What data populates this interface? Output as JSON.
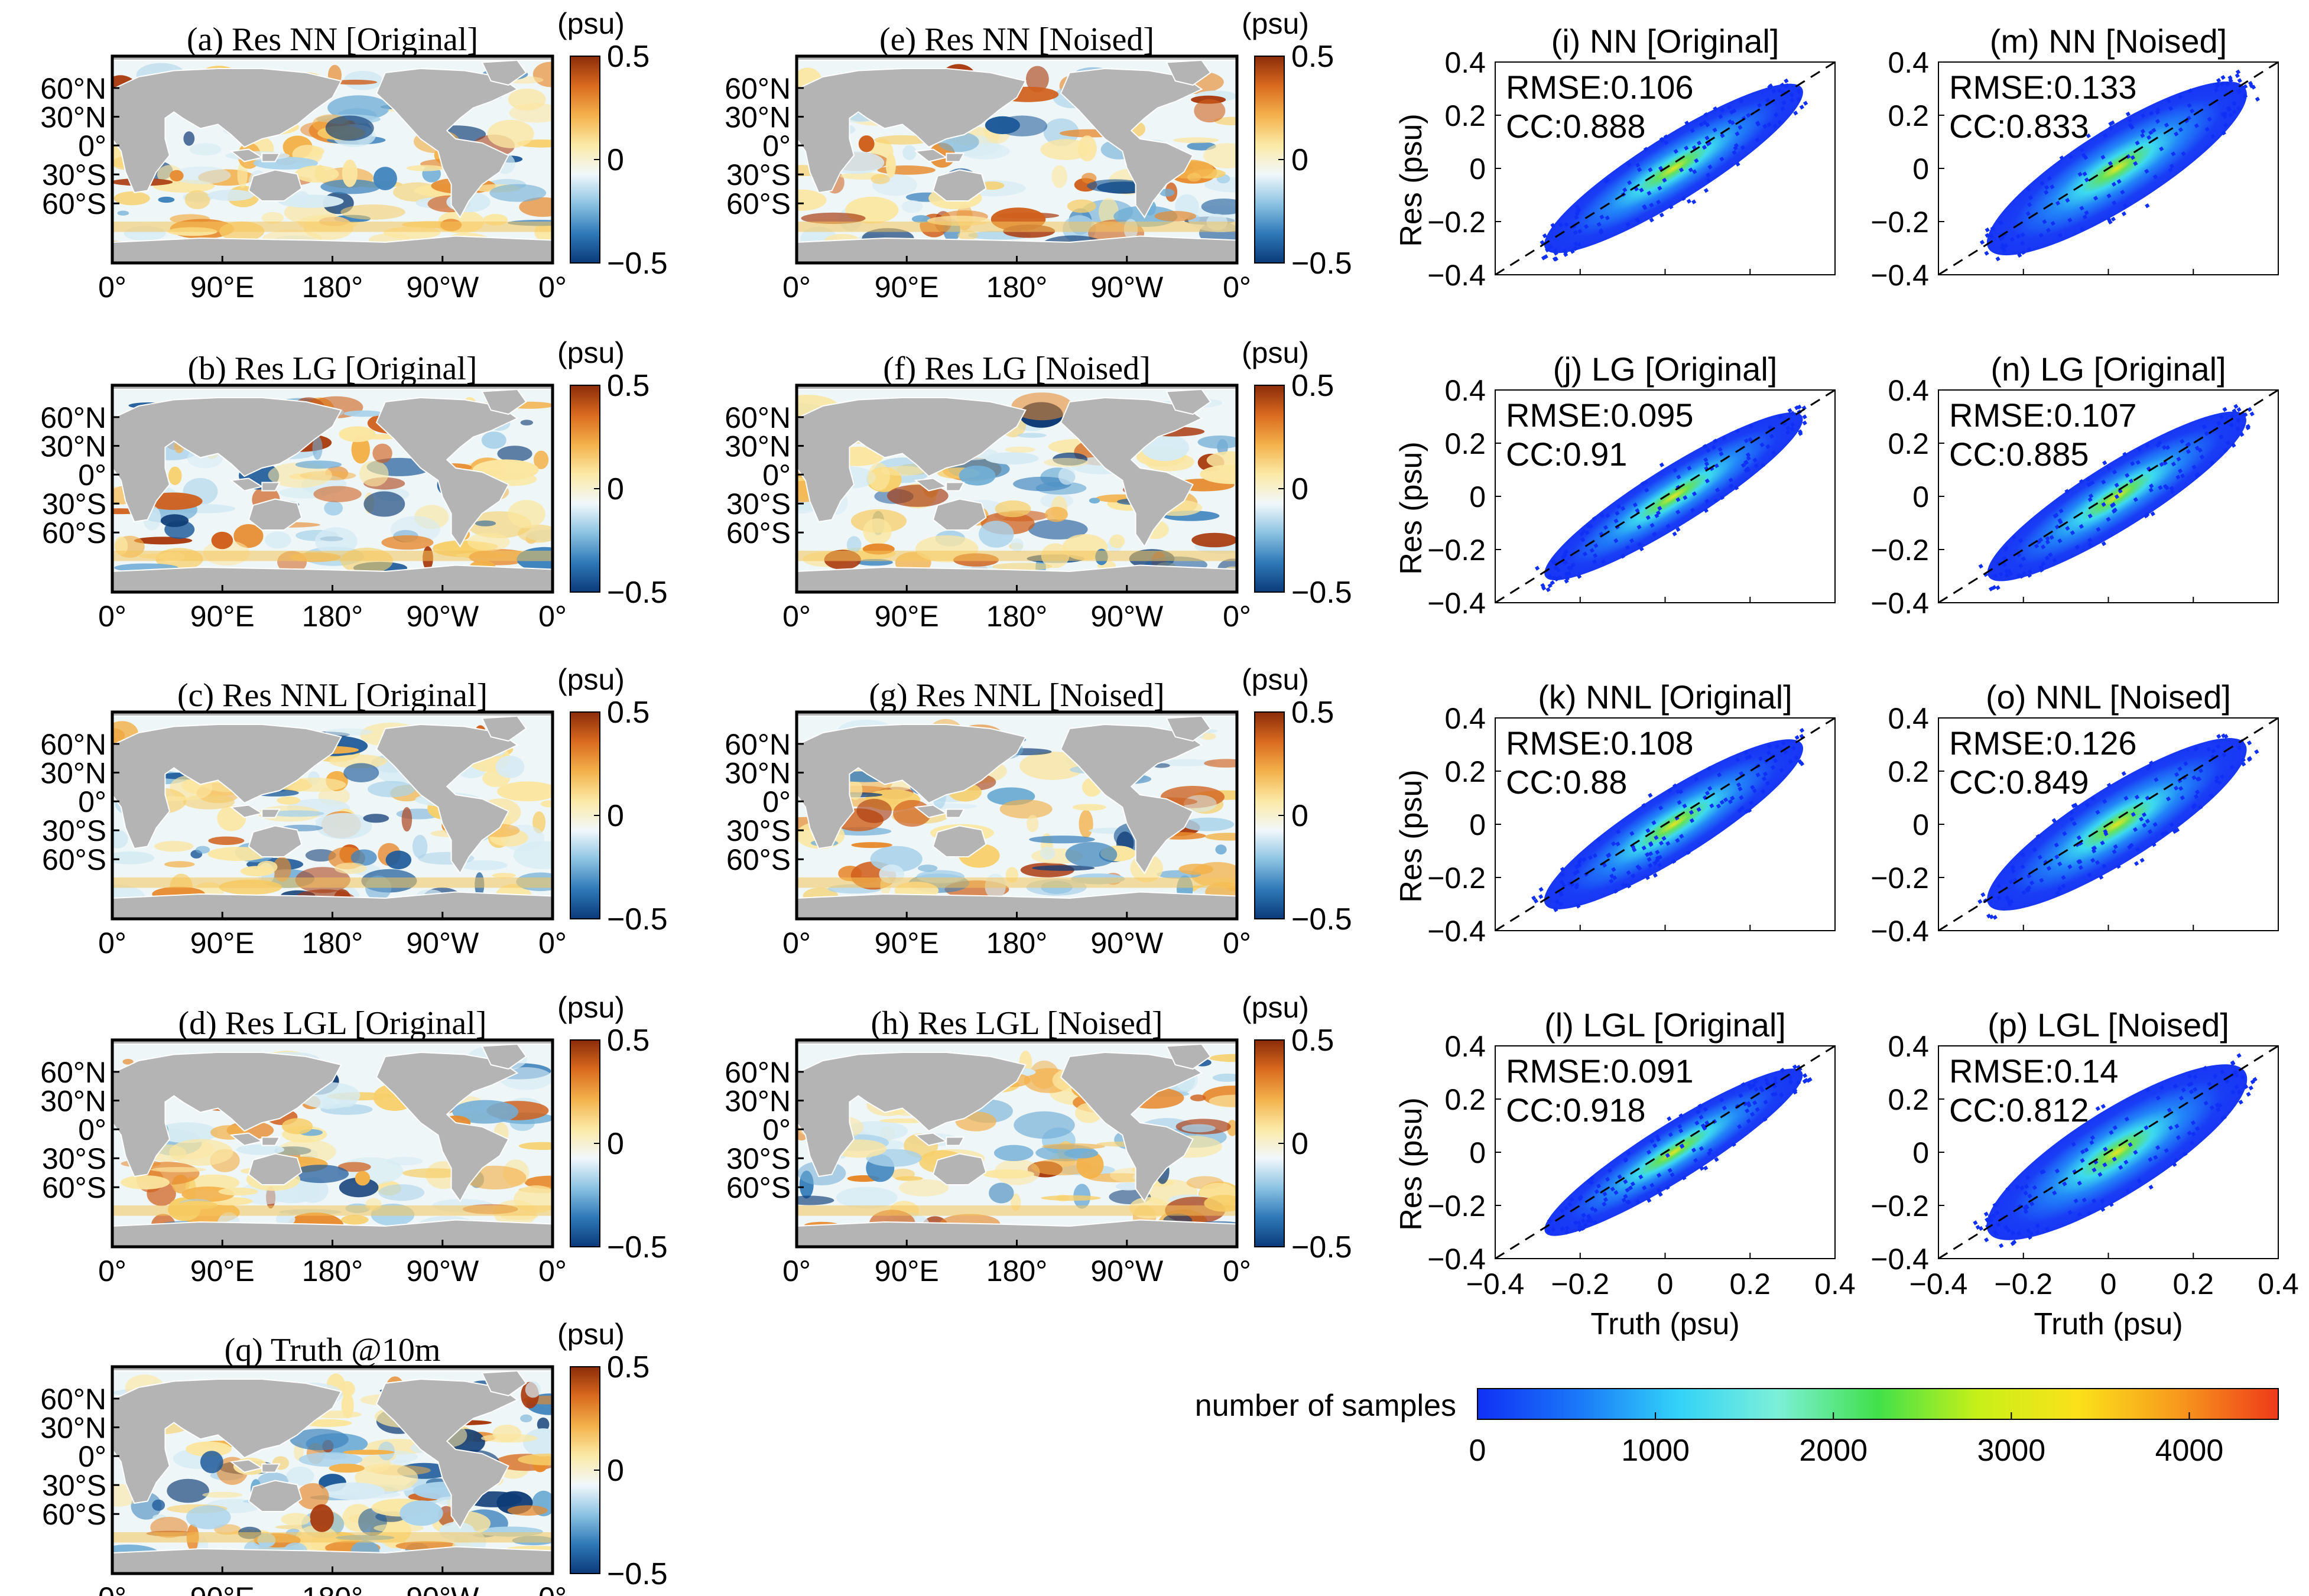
{
  "colors": {
    "land": "#b4b4b4",
    "diverging": [
      "#0b3a7a",
      "#2f79b8",
      "#8cc3e2",
      "#f2f8fb",
      "#fbe9a6",
      "#f3b14a",
      "#d96a1f",
      "#8a2c0a"
    ],
    "density": [
      "#1030f5",
      "#1a78f8",
      "#32d2f8",
      "#7cf0d8",
      "#41e04a",
      "#c8f018",
      "#fbe11a",
      "#f79a1c",
      "#ee3a1a"
    ],
    "identity_line": "#000000"
  },
  "map_axes": {
    "lat_ticks": [
      "60°N",
      "30°N",
      "0°",
      "30°S",
      "60°S"
    ],
    "lon_ticks": [
      "0°",
      "90°E",
      "180°",
      "90°W",
      "0°"
    ],
    "colorbar_unit": "(psu)",
    "colorbar_ticks": [
      "0.5",
      "0",
      "−0.5"
    ]
  },
  "maps": [
    {
      "id": "a",
      "title": "(a) Res NN [Original]"
    },
    {
      "id": "b",
      "title": "(b) Res LG [Original]"
    },
    {
      "id": "c",
      "title": "(c) Res NNL [Original]"
    },
    {
      "id": "d",
      "title": "(d) Res LGL [Original]"
    },
    {
      "id": "e",
      "title": "(e) Res NN [Noised]"
    },
    {
      "id": "f",
      "title": "(f) Res LG [Noised]"
    },
    {
      "id": "g",
      "title": "(g) Res NNL [Noised]"
    },
    {
      "id": "h",
      "title": "(h) Res LGL [Noised]"
    },
    {
      "id": "q",
      "title": "(q) Truth @10m"
    }
  ],
  "chart_data": [
    {
      "type": "scatter",
      "panel": "i",
      "title": "(i) NN [Original]",
      "xlabel": "Truth (psu)",
      "ylabel": "Res (psu)",
      "xlim": [
        -0.4,
        0.4
      ],
      "ylim": [
        -0.4,
        0.4
      ],
      "xticks": [
        "−0.4",
        "−0.2",
        "0",
        "0.2",
        "0.4"
      ],
      "yticks": [
        "0.4",
        "0.2",
        "0",
        "−0.2",
        "−0.4"
      ],
      "rmse_label": "RMSE:0.106",
      "cc_label": "CC:0.888",
      "rmse": 0.106,
      "cc": 0.888
    },
    {
      "type": "scatter",
      "panel": "m",
      "title": "(m) NN [Noised]",
      "xlabel": "Truth (psu)",
      "ylabel": "Res (psu)",
      "xlim": [
        -0.4,
        0.4
      ],
      "ylim": [
        -0.4,
        0.4
      ],
      "xticks": [
        "−0.4",
        "−0.2",
        "0",
        "0.2",
        "0.4"
      ],
      "yticks": [
        "0.4",
        "0.2",
        "0",
        "−0.2",
        "−0.4"
      ],
      "rmse_label": "RMSE:0.133",
      "cc_label": "CC:0.833",
      "rmse": 0.133,
      "cc": 0.833
    },
    {
      "type": "scatter",
      "panel": "j",
      "title": "(j) LG [Original]",
      "xlabel": "Truth (psu)",
      "ylabel": "Res (psu)",
      "xlim": [
        -0.4,
        0.4
      ],
      "ylim": [
        -0.4,
        0.4
      ],
      "xticks": [
        "−0.4",
        "−0.2",
        "0",
        "0.2",
        "0.4"
      ],
      "yticks": [
        "0.4",
        "0.2",
        "0",
        "−0.2",
        "−0.4"
      ],
      "rmse_label": "RMSE:0.095",
      "cc_label": "CC:0.91",
      "rmse": 0.095,
      "cc": 0.91
    },
    {
      "type": "scatter",
      "panel": "n",
      "title": "(n) LG [Original]",
      "xlabel": "Truth (psu)",
      "ylabel": "Res (psu)",
      "xlim": [
        -0.4,
        0.4
      ],
      "ylim": [
        -0.4,
        0.4
      ],
      "xticks": [
        "−0.4",
        "−0.2",
        "0",
        "0.2",
        "0.4"
      ],
      "yticks": [
        "0.4",
        "0.2",
        "0",
        "−0.2",
        "−0.4"
      ],
      "rmse_label": "RMSE:0.107",
      "cc_label": "CC:0.885",
      "rmse": 0.107,
      "cc": 0.885
    },
    {
      "type": "scatter",
      "panel": "k",
      "title": "(k) NNL [Original]",
      "xlabel": "Truth (psu)",
      "ylabel": "Res (psu)",
      "xlim": [
        -0.4,
        0.4
      ],
      "ylim": [
        -0.4,
        0.4
      ],
      "xticks": [
        "−0.4",
        "−0.2",
        "0",
        "0.2",
        "0.4"
      ],
      "yticks": [
        "0.4",
        "0.2",
        "0",
        "−0.2",
        "−0.4"
      ],
      "rmse_label": "RMSE:0.108",
      "cc_label": "CC:0.88",
      "rmse": 0.108,
      "cc": 0.88
    },
    {
      "type": "scatter",
      "panel": "o",
      "title": "(o) NNL [Noised]",
      "xlabel": "Truth (psu)",
      "ylabel": "Res (psu)",
      "xlim": [
        -0.4,
        0.4
      ],
      "ylim": [
        -0.4,
        0.4
      ],
      "xticks": [
        "−0.4",
        "−0.2",
        "0",
        "0.2",
        "0.4"
      ],
      "yticks": [
        "0.4",
        "0.2",
        "0",
        "−0.2",
        "−0.4"
      ],
      "rmse_label": "RMSE:0.126",
      "cc_label": "CC:0.849",
      "rmse": 0.126,
      "cc": 0.849
    },
    {
      "type": "scatter",
      "panel": "l",
      "title": "(l) LGL [Original]",
      "xlabel": "Truth (psu)",
      "ylabel": "Res (psu)",
      "xlim": [
        -0.4,
        0.4
      ],
      "ylim": [
        -0.4,
        0.4
      ],
      "xticks": [
        "−0.4",
        "−0.2",
        "0",
        "0.2",
        "0.4"
      ],
      "yticks": [
        "0.4",
        "0.2",
        "0",
        "−0.2",
        "−0.4"
      ],
      "rmse_label": "RMSE:0.091",
      "cc_label": "CC:0.918",
      "rmse": 0.091,
      "cc": 0.918
    },
    {
      "type": "scatter",
      "panel": "p",
      "title": "(p) LGL [Noised]",
      "xlabel": "Truth (psu)",
      "ylabel": "Res (psu)",
      "xlim": [
        -0.4,
        0.4
      ],
      "ylim": [
        -0.4,
        0.4
      ],
      "xticks": [
        "−0.4",
        "−0.2",
        "0",
        "0.2",
        "0.4"
      ],
      "yticks": [
        "0.4",
        "0.2",
        "0",
        "−0.2",
        "−0.4"
      ],
      "rmse_label": "RMSE:0.14",
      "cc_label": "CC:0.812",
      "rmse": 0.14,
      "cc": 0.812
    }
  ],
  "density_colorbar": {
    "label": "number of  samples",
    "range": [
      0,
      4500
    ],
    "ticks": [
      "0",
      "1000",
      "2000",
      "3000",
      "4000"
    ],
    "tick_values": [
      0,
      1000,
      2000,
      3000,
      4000
    ]
  }
}
